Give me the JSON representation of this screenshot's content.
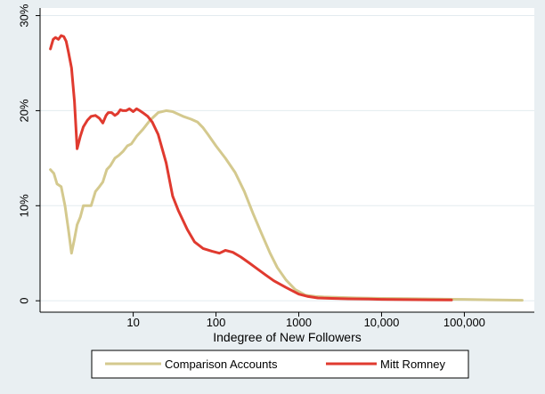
{
  "colors": {
    "background": "#e9eff2",
    "plot_background": "#ffffff",
    "comparison": "#d4c98e",
    "romney": "#e03a2f",
    "gridline": "#e3ebef"
  },
  "chart_data": {
    "type": "line",
    "title": "",
    "xlabel": "Indegree of New Followers",
    "ylabel": "",
    "x_scale": "log",
    "xlim": [
      0.75,
      700000
    ],
    "ylim": [
      -1.2,
      30.8
    ],
    "x_ticks": [
      10,
      100,
      1000,
      10000,
      100000
    ],
    "x_tick_labels": [
      "10",
      "100",
      "1000",
      "10,000",
      "100,000"
    ],
    "y_ticks": [
      0,
      10,
      20,
      30
    ],
    "y_tick_labels": [
      "0",
      "10%",
      "20%",
      "30%"
    ],
    "grid": true,
    "legend_position": "bottom",
    "series": [
      {
        "name": "Comparison Accounts",
        "color": "#d4c98e",
        "x": [
          1.0,
          1.1,
          1.2,
          1.35,
          1.5,
          1.65,
          1.8,
          1.95,
          2.1,
          2.3,
          2.5,
          2.8,
          3.1,
          3.5,
          3.9,
          4.3,
          4.8,
          5.3,
          6.0,
          6.7,
          7.5,
          8.5,
          9.5,
          11,
          13,
          16,
          20,
          25,
          30,
          40,
          50,
          60,
          70,
          80,
          100,
          130,
          170,
          220,
          280,
          350,
          450,
          550,
          700,
          900,
          1200,
          1600,
          2000,
          3000,
          5000,
          10000,
          20000,
          50000,
          100000,
          200000,
          500000
        ],
        "y": [
          13.8,
          13.4,
          12.3,
          12.0,
          10.0,
          7.5,
          5.0,
          6.5,
          8.0,
          8.8,
          10.0,
          10.0,
          10.0,
          11.5,
          12.0,
          12.5,
          13.8,
          14.2,
          15.0,
          15.3,
          15.7,
          16.3,
          16.5,
          17.3,
          18.0,
          19.0,
          19.8,
          20.0,
          19.9,
          19.4,
          19.1,
          18.8,
          18.2,
          17.5,
          16.3,
          15.0,
          13.5,
          11.5,
          9.2,
          7.2,
          5.0,
          3.5,
          2.2,
          1.2,
          0.6,
          0.45,
          0.4,
          0.35,
          0.3,
          0.25,
          0.22,
          0.18,
          0.15,
          0.1,
          0.05
        ]
      },
      {
        "name": "Mitt Romney",
        "color": "#e03a2f",
        "x": [
          1.0,
          1.08,
          1.15,
          1.25,
          1.35,
          1.45,
          1.55,
          1.65,
          1.8,
          1.95,
          2.1,
          2.3,
          2.5,
          2.8,
          3.1,
          3.5,
          3.9,
          4.3,
          4.7,
          5.0,
          5.5,
          6.0,
          6.5,
          7.0,
          7.5,
          8.2,
          9.0,
          10,
          11,
          12,
          13,
          15,
          17,
          20,
          25,
          30,
          35,
          45,
          55,
          70,
          90,
          110,
          130,
          160,
          200,
          250,
          300,
          400,
          500,
          700,
          1000,
          1300,
          1700,
          2500,
          4000,
          7000,
          10000,
          20000,
          40000,
          70000
        ],
        "y": [
          26.5,
          27.5,
          27.7,
          27.5,
          27.9,
          27.8,
          27.3,
          26.2,
          24.5,
          21.0,
          16.0,
          17.3,
          18.3,
          19.0,
          19.4,
          19.5,
          19.2,
          18.7,
          19.5,
          19.8,
          19.8,
          19.5,
          19.7,
          20.1,
          20.0,
          20.0,
          20.2,
          19.9,
          20.2,
          20.0,
          19.8,
          19.4,
          18.8,
          17.5,
          14.5,
          11.0,
          9.5,
          7.5,
          6.2,
          5.5,
          5.2,
          5.0,
          5.3,
          5.1,
          4.6,
          4.0,
          3.5,
          2.7,
          2.1,
          1.4,
          0.7,
          0.45,
          0.3,
          0.25,
          0.2,
          0.18,
          0.15,
          0.12,
          0.1,
          0.08
        ]
      }
    ]
  }
}
